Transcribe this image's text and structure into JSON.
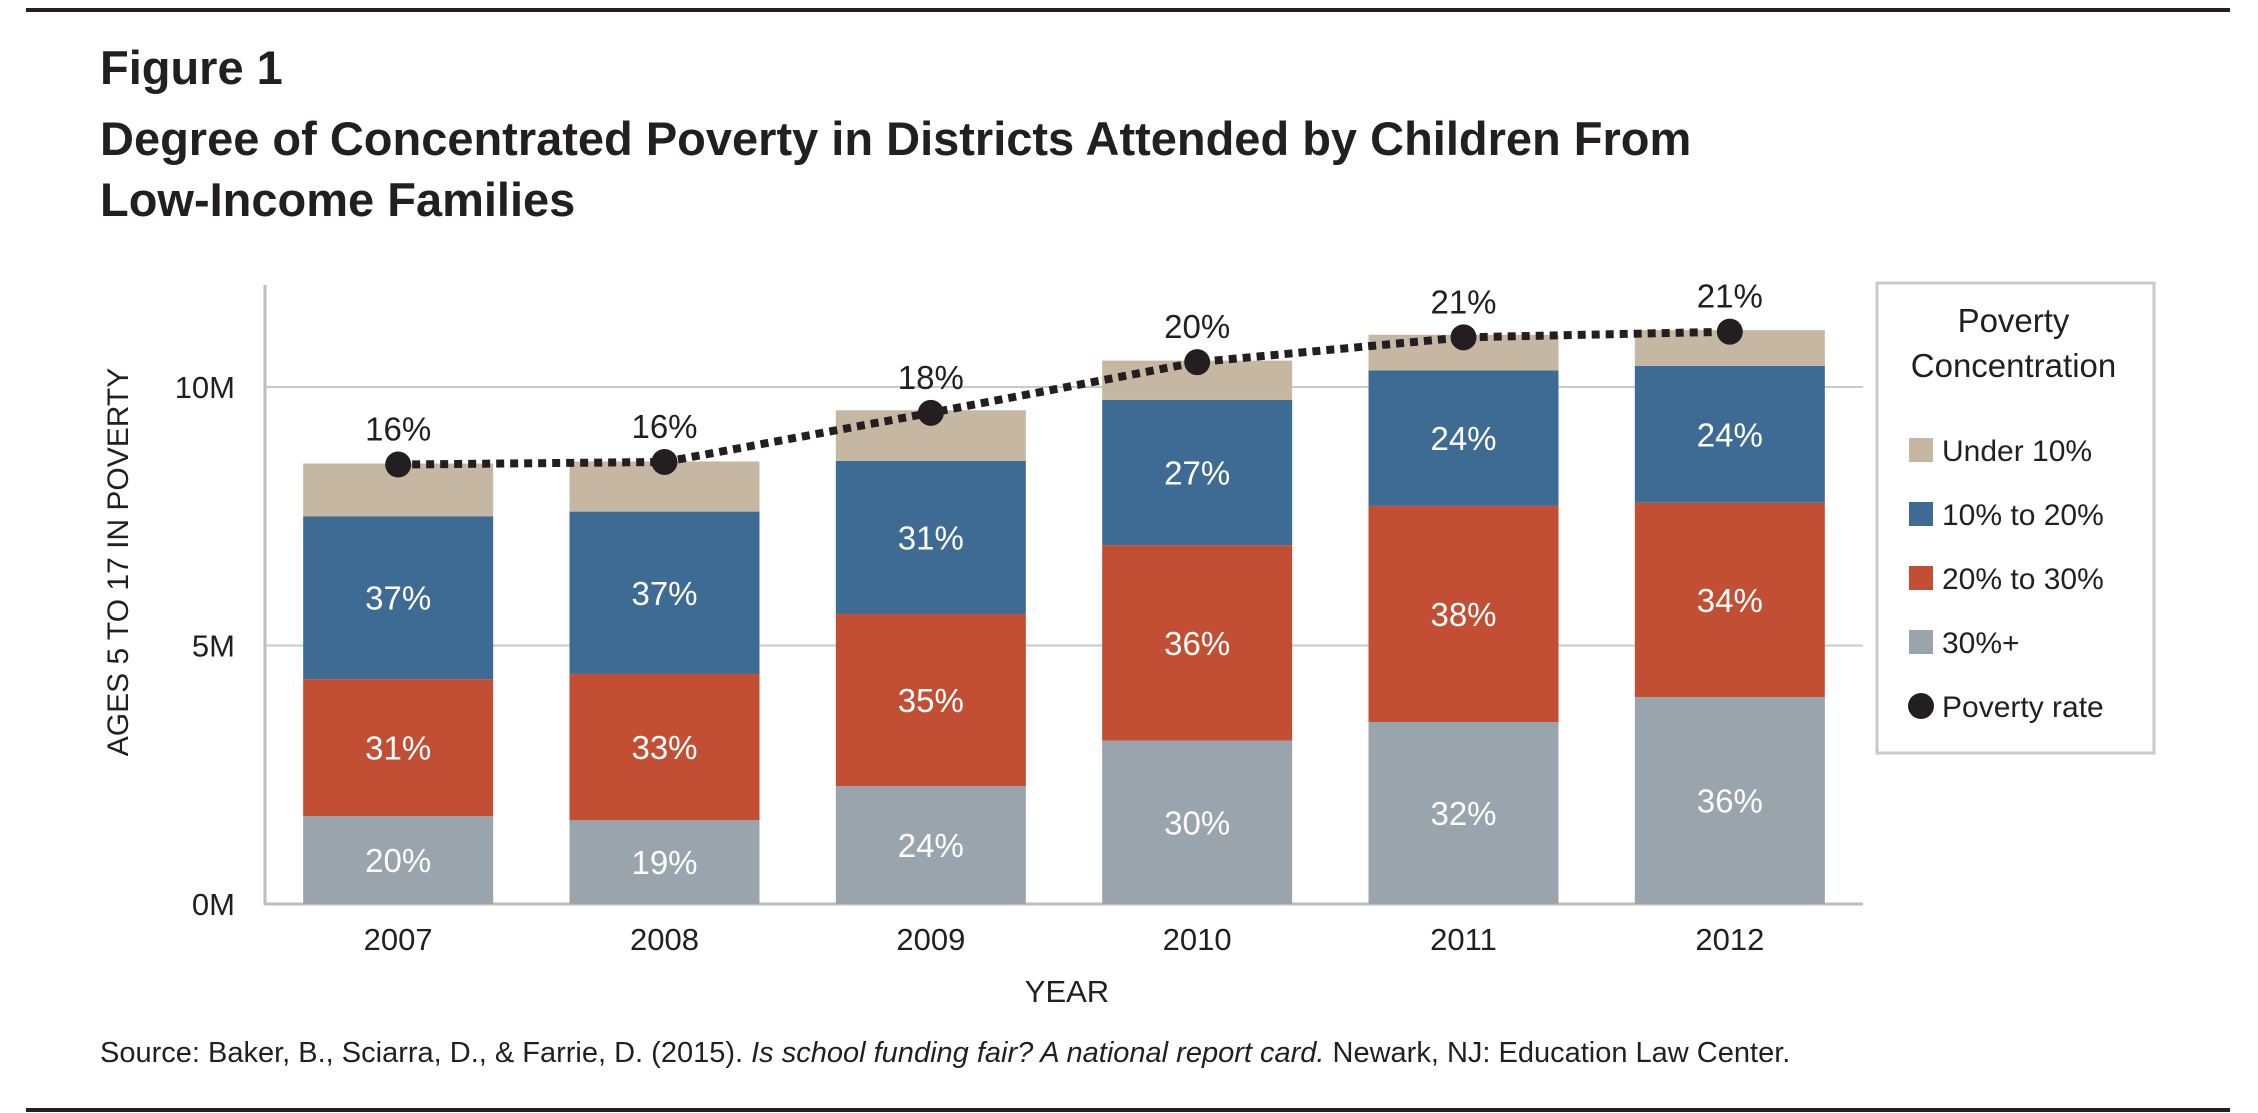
{
  "figure_label": "Figure 1",
  "title_line1": "Degree of Concentrated Poverty in Districts Attended by Children From",
  "title_line2": "Low-Income Families",
  "source": {
    "prefix": "Source: Baker, B., Sciarra, D., & Farrie, D. (2015). ",
    "italic": "Is school funding fair? A national report card.",
    "suffix": " Newark, NJ: Education Law Center."
  },
  "chart_data": {
    "type": "bar",
    "stacked": true,
    "title": "",
    "xlabel": "YEAR",
    "ylabel": "AGES 5 TO 17 IN POVERTY",
    "ylim": [
      0,
      12000000
    ],
    "y_ticks": [
      {
        "value": 0,
        "label": "0M"
      },
      {
        "value": 5000000,
        "label": "5M"
      },
      {
        "value": 10000000,
        "label": "10M"
      }
    ],
    "grid": true,
    "categories": [
      "2007",
      "2008",
      "2009",
      "2010",
      "2011",
      "2012"
    ],
    "series": [
      {
        "name": "30%+",
        "color": "#9aa4ad",
        "values": [
          1700000,
          1620000,
          2280000,
          3160000,
          3520000,
          4000000
        ],
        "labels": [
          "20%",
          "19%",
          "24%",
          "30%",
          "32%",
          "36%"
        ]
      },
      {
        "name": "20% to 30%",
        "color": "#c24f33",
        "values": [
          2650000,
          2830000,
          3330000,
          3780000,
          4180000,
          3760000
        ],
        "labels": [
          "31%",
          "33%",
          "35%",
          "36%",
          "38%",
          "34%"
        ]
      },
      {
        "name": "10% to 20%",
        "color": "#3e6b94",
        "values": [
          3150000,
          3140000,
          2960000,
          2810000,
          2620000,
          2650000
        ],
        "labels": [
          "37%",
          "37%",
          "31%",
          "27%",
          "24%",
          "24%"
        ]
      },
      {
        "name": "Under 10%",
        "color": "#c5b7a2",
        "values": [
          1020000,
          970000,
          980000,
          760000,
          690000,
          690000
        ],
        "labels": [
          "",
          "",
          "",
          "",
          "",
          ""
        ]
      }
    ],
    "line_series": {
      "name": "Poverty rate",
      "color": "#231f20",
      "style": "dotted",
      "values": [
        8500000,
        8550000,
        9500000,
        10480000,
        10960000,
        11070000
      ],
      "labels": [
        "16%",
        "16%",
        "18%",
        "20%",
        "21%",
        "21%"
      ]
    },
    "legend": {
      "title_line1": "Poverty",
      "title_line2": "Concentration",
      "placement": "right"
    }
  }
}
